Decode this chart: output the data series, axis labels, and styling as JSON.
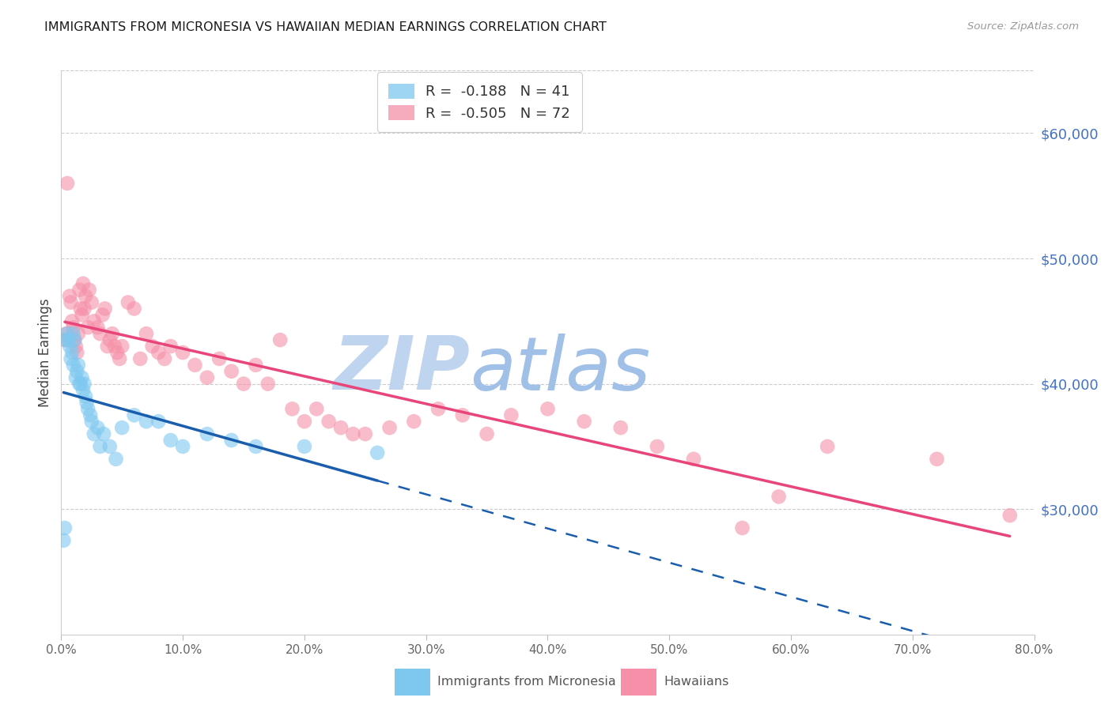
{
  "title": "IMMIGRANTS FROM MICRONESIA VS HAWAIIAN MEDIAN EARNINGS CORRELATION CHART",
  "source": "Source: ZipAtlas.com",
  "ylabel": "Median Earnings",
  "right_ytick_labels": [
    "$30,000",
    "$40,000",
    "$50,000",
    "$60,000"
  ],
  "right_ytick_values": [
    30000,
    40000,
    50000,
    60000
  ],
  "xlim": [
    0.0,
    0.8
  ],
  "ylim": [
    20000,
    65000
  ],
  "xtick_labels": [
    "0.0%",
    "10.0%",
    "20.0%",
    "30.0%",
    "40.0%",
    "50.0%",
    "60.0%",
    "70.0%",
    "80.0%"
  ],
  "xtick_values": [
    0.0,
    0.1,
    0.2,
    0.3,
    0.4,
    0.5,
    0.6,
    0.7,
    0.8
  ],
  "legend_r1": "R =  -0.188   N = 41",
  "legend_r2": "R =  -0.505   N = 72",
  "blue_color": "#7EC8F0",
  "pink_color": "#F590A8",
  "trendline_blue_color": "#1A5DAD",
  "trendline_pink_color": "#E8457A",
  "watermark": "ZIPatlas",
  "watermark_color": "#C8D8F0",
  "series1_label": "Immigrants from Micronesia",
  "series2_label": "Hawaiians",
  "blue_x": [
    0.002,
    0.003,
    0.004,
    0.005,
    0.006,
    0.007,
    0.008,
    0.009,
    0.01,
    0.01,
    0.011,
    0.012,
    0.013,
    0.014,
    0.015,
    0.016,
    0.017,
    0.018,
    0.019,
    0.02,
    0.021,
    0.022,
    0.024,
    0.025,
    0.027,
    0.03,
    0.032,
    0.035,
    0.04,
    0.045,
    0.05,
    0.06,
    0.07,
    0.08,
    0.09,
    0.1,
    0.12,
    0.14,
    0.16,
    0.2,
    0.26
  ],
  "blue_y": [
    27500,
    28500,
    43500,
    44000,
    43500,
    43000,
    42000,
    42500,
    44000,
    41500,
    43500,
    40500,
    41000,
    41500,
    40000,
    40000,
    40500,
    39500,
    40000,
    39000,
    38500,
    38000,
    37500,
    37000,
    36000,
    36500,
    35000,
    36000,
    35000,
    34000,
    36500,
    37500,
    37000,
    37000,
    35500,
    35000,
    36000,
    35500,
    35000,
    35000,
    34500
  ],
  "pink_x": [
    0.003,
    0.004,
    0.005,
    0.007,
    0.008,
    0.009,
    0.01,
    0.011,
    0.012,
    0.013,
    0.014,
    0.015,
    0.016,
    0.017,
    0.018,
    0.019,
    0.02,
    0.022,
    0.023,
    0.025,
    0.027,
    0.03,
    0.032,
    0.034,
    0.036,
    0.038,
    0.04,
    0.042,
    0.044,
    0.046,
    0.048,
    0.05,
    0.055,
    0.06,
    0.065,
    0.07,
    0.075,
    0.08,
    0.085,
    0.09,
    0.1,
    0.11,
    0.12,
    0.13,
    0.14,
    0.15,
    0.16,
    0.17,
    0.18,
    0.19,
    0.2,
    0.21,
    0.22,
    0.23,
    0.24,
    0.25,
    0.27,
    0.29,
    0.31,
    0.33,
    0.35,
    0.37,
    0.4,
    0.43,
    0.46,
    0.49,
    0.52,
    0.56,
    0.59,
    0.63,
    0.72,
    0.78
  ],
  "pink_y": [
    43500,
    44000,
    56000,
    47000,
    46500,
    45000,
    44500,
    43500,
    43000,
    42500,
    44000,
    47500,
    46000,
    45500,
    48000,
    46000,
    47000,
    44500,
    47500,
    46500,
    45000,
    44500,
    44000,
    45500,
    46000,
    43000,
    43500,
    44000,
    43000,
    42500,
    42000,
    43000,
    46500,
    46000,
    42000,
    44000,
    43000,
    42500,
    42000,
    43000,
    42500,
    41500,
    40500,
    42000,
    41000,
    40000,
    41500,
    40000,
    43500,
    38000,
    37000,
    38000,
    37000,
    36500,
    36000,
    36000,
    36500,
    37000,
    38000,
    37500,
    36000,
    37500,
    38000,
    37000,
    36500,
    35000,
    34000,
    28500,
    31000,
    35000,
    34000,
    29500
  ],
  "trendline_blue_x0": 0.002,
  "trendline_blue_x1": 0.26,
  "trendline_blue_xend": 0.8,
  "trendline_pink_x0": 0.003,
  "trendline_pink_x1": 0.78
}
